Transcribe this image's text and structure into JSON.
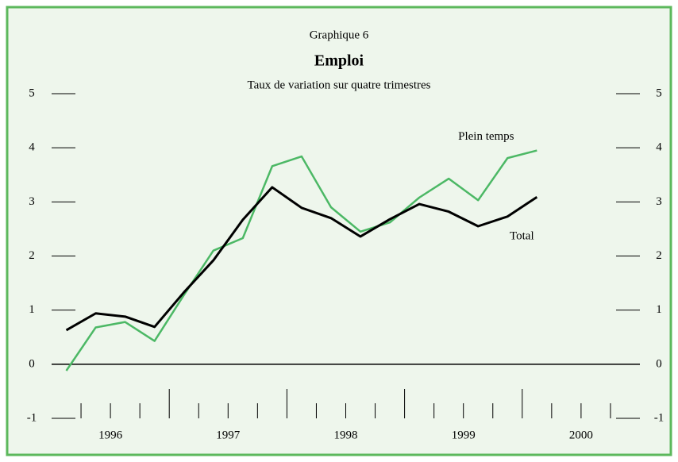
{
  "chart_data": {
    "type": "line",
    "title": "Graphique 6",
    "subtitle": "Emploi",
    "caption": "Taux de variation sur quatre trimestres",
    "x": [
      1996.125,
      1996.375,
      1996.625,
      1996.875,
      1997.125,
      1997.375,
      1997.625,
      1997.875,
      1998.125,
      1998.375,
      1998.625,
      1998.875,
      1999.125,
      1999.375,
      1999.625,
      1999.875,
      2000.125
    ],
    "series": [
      {
        "name": "Plein temps",
        "color": "#4cb865",
        "values": [
          -0.12,
          0.68,
          0.78,
          0.43,
          1.28,
          2.1,
          2.33,
          3.66,
          3.84,
          2.9,
          2.45,
          2.62,
          3.08,
          3.43,
          3.03,
          3.81,
          3.95
        ]
      },
      {
        "name": "Total",
        "color": "#000000",
        "values": [
          0.63,
          0.94,
          0.88,
          0.69,
          1.33,
          1.92,
          2.67,
          3.27,
          2.89,
          2.7,
          2.36,
          2.68,
          2.96,
          2.82,
          2.55,
          2.73,
          3.09
        ]
      }
    ],
    "xlim": [
      1996,
      2001
    ],
    "xticks": [
      {
        "value": 1996.5,
        "label": "1996"
      },
      {
        "value": 1997.5,
        "label": "1997"
      },
      {
        "value": 1998.5,
        "label": "1998"
      },
      {
        "value": 1999.5,
        "label": "1999"
      },
      {
        "value": 2000.5,
        "label": "2000"
      }
    ],
    "xticks_major": [
      1997,
      1998,
      1999,
      2000
    ],
    "xticks_minor": [
      1996.25,
      1996.5,
      1996.75,
      1997.25,
      1997.5,
      1997.75,
      1998.25,
      1998.5,
      1998.75,
      1999.25,
      1999.5,
      1999.75,
      2000.25,
      2000.5,
      2000.75
    ],
    "ylim": [
      -1,
      5
    ],
    "yticks": [
      -1,
      0,
      1,
      2,
      3,
      4,
      5
    ]
  }
}
